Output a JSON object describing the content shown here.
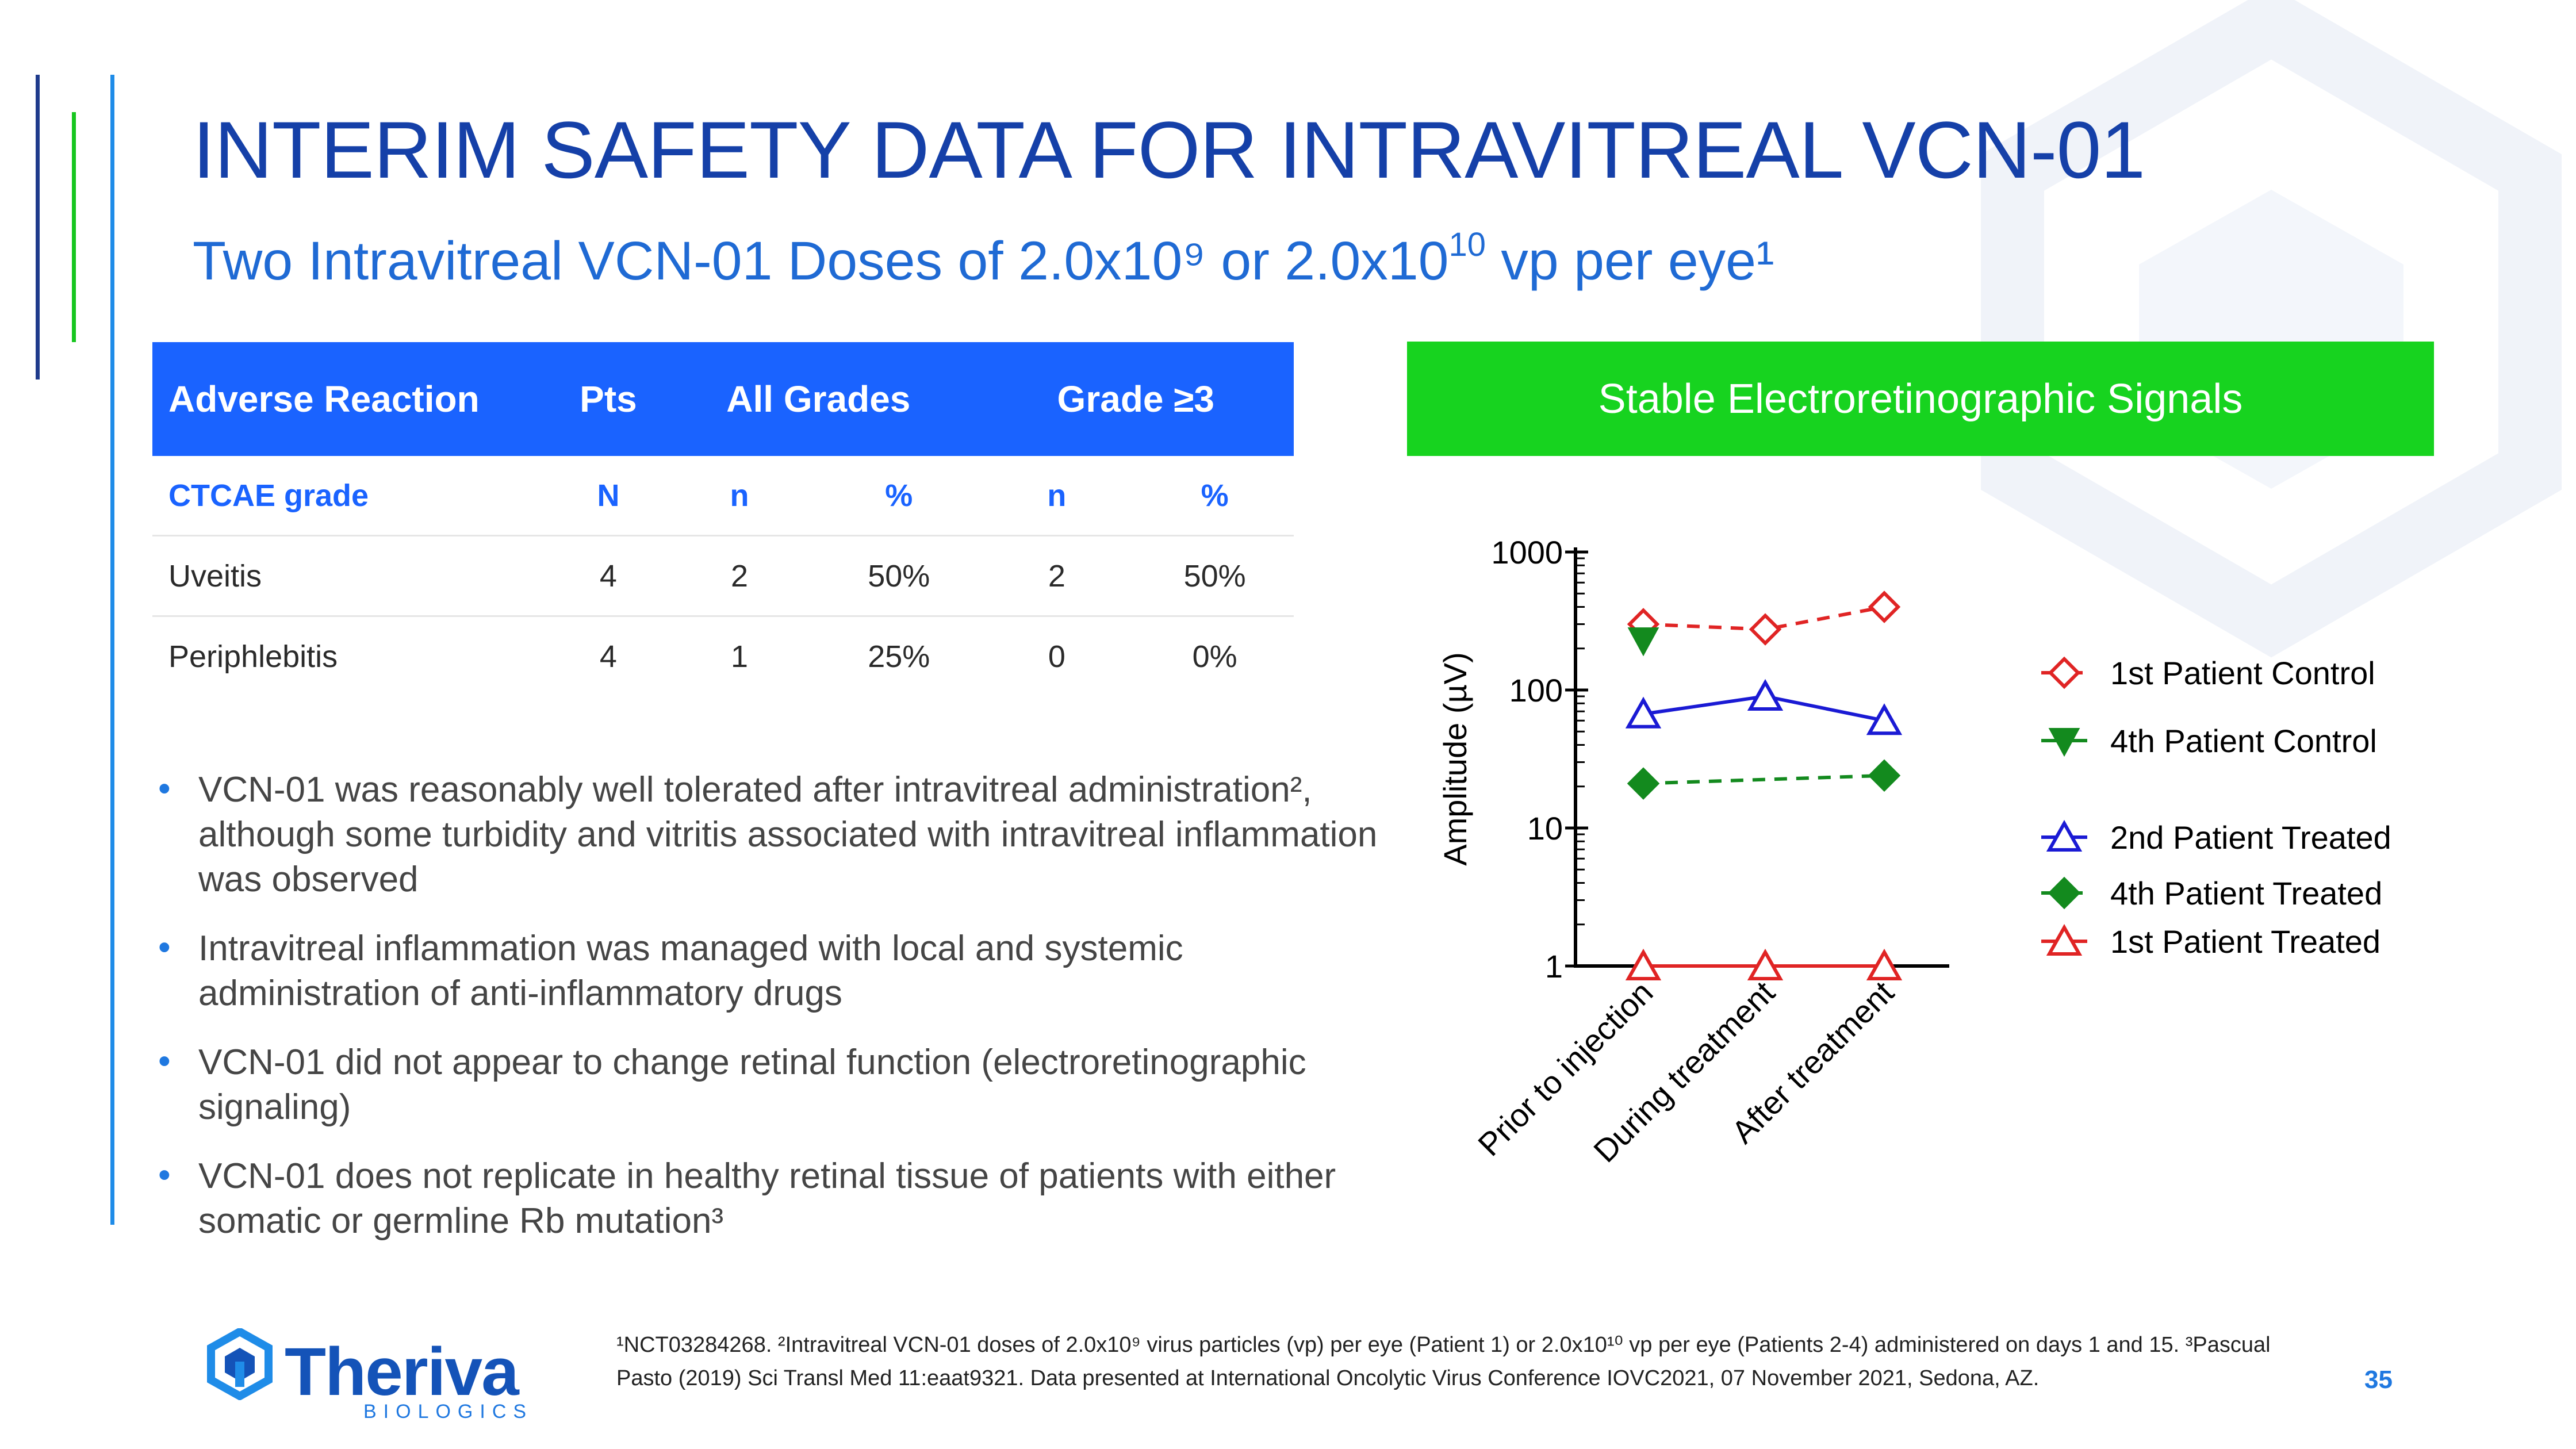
{
  "title": "INTERIM SAFETY DATA FOR INTRAVITREAL VCN-01",
  "subtitle": {
    "part1": "Two Intravitreal VCN-01 Doses of 2.0x10⁹ or 2.0x10",
    "sup": "10",
    "part2": " vp per eye¹"
  },
  "table": {
    "headers": [
      "Adverse Reaction",
      "Pts",
      "All Grades",
      "Grade ≥3"
    ],
    "subheader": [
      "CTCAE grade",
      "N",
      "n",
      "%",
      "n",
      "%"
    ],
    "rows": [
      [
        "Uveitis",
        "4",
        "2",
        "50%",
        "2",
        "50%"
      ],
      [
        "Periphlebitis",
        "4",
        "1",
        "25%",
        "0",
        "0%"
      ]
    ]
  },
  "bullets": [
    "VCN-01 was reasonably well tolerated after intravitreal administration², although some turbidity and vitritis associated with intravitreal inflammation was observed",
    "Intravitreal inflammation was managed with local and systemic administration of anti-inflammatory drugs",
    "VCN-01 did not appear to change retinal function (electroretinographic signaling)",
    "VCN-01 does not replicate in healthy retinal tissue of patients with either somatic or germline Rb mutation³"
  ],
  "bullet_glyph": "•",
  "chart_header": "Stable Electroretinographic Signals",
  "chart_data": {
    "type": "line",
    "title": "",
    "xlabel": "",
    "ylabel": "Amplitude (µV)",
    "y_scale": "log",
    "ylim": [
      1,
      1000
    ],
    "y_ticks": [
      "1",
      "10",
      "100",
      "1000"
    ],
    "categories": [
      "Prior to injection",
      "During treatment",
      "After treatment"
    ],
    "legend_position": "right",
    "series": [
      {
        "name": "1st Patient Control",
        "values": [
          300,
          275,
          400
        ],
        "color": "#e02424",
        "marker": "diamond-open",
        "dash": true
      },
      {
        "name": "4th Patient Control",
        "values": [
          230,
          null,
          null
        ],
        "color": "#138a1e",
        "marker": "triangle-down-filled",
        "dash": false
      },
      {
        "name": "2nd Patient Treated",
        "values": [
          67,
          90,
          60
        ],
        "color": "#1a1ad4",
        "marker": "triangle-up-open",
        "dash": false
      },
      {
        "name": "4th Patient Treated",
        "values": [
          21,
          null,
          24
        ],
        "color": "#138a1e",
        "marker": "diamond-filled",
        "dash": true
      },
      {
        "name": "1st Patient Treated",
        "values": [
          1,
          1,
          1
        ],
        "color": "#e02424",
        "marker": "triangle-up-open",
        "dash": false
      }
    ]
  },
  "footnote": "¹NCT03284268. ²Intravitreal VCN-01 doses of 2.0x10⁹ virus particles (vp) per eye (Patient 1) or 2.0x10¹⁰ vp per eye (Patients 2-4) administered on days 1 and 15. ³Pascual Pasto (2019) Sci Transl Med 11:eaat9321. Data presented at International Oncolytic Virus Conference IOVC2021, 07 November 2021, Sedona, AZ.",
  "page_number": "35",
  "logo": {
    "word": "Theriva",
    "sub": "BIOLOGICS"
  },
  "colors": {
    "title": "#1540a8",
    "subtitle": "#1f6ad4",
    "table_header": "#1a63ff",
    "chart_header": "#17d31f",
    "accent_blue": "#1f78e0"
  }
}
